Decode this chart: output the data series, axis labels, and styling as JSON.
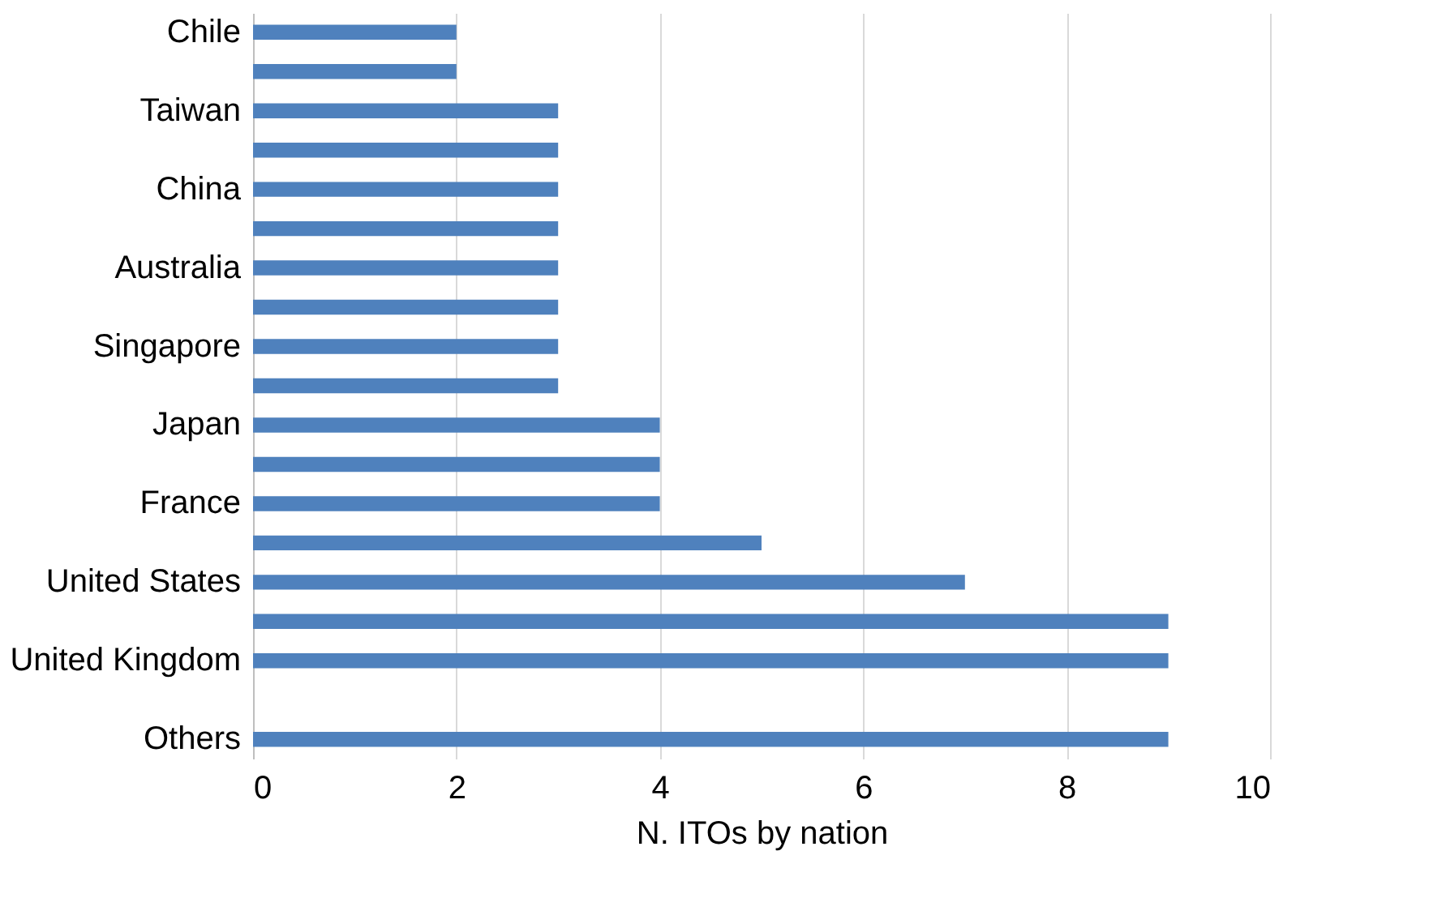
{
  "chart_data": {
    "type": "bar",
    "orientation": "horizontal",
    "xlabel": "N. ITOs by nation",
    "categories": [
      "Chile",
      null,
      "Taiwan",
      null,
      "China",
      null,
      "Australia",
      null,
      "Singapore",
      null,
      "Japan",
      null,
      "France",
      null,
      "United States",
      null,
      "United Kingdom",
      null,
      "Others"
    ],
    "values": [
      2,
      2,
      3,
      3,
      3,
      3,
      3,
      3,
      3,
      3,
      4,
      4,
      4,
      5,
      7,
      9,
      9,
      null,
      9
    ],
    "color": "#4f81bd",
    "xlim": [
      0,
      10
    ],
    "xticks": [
      0,
      2,
      4,
      6,
      8,
      10
    ],
    "grid": "x"
  }
}
